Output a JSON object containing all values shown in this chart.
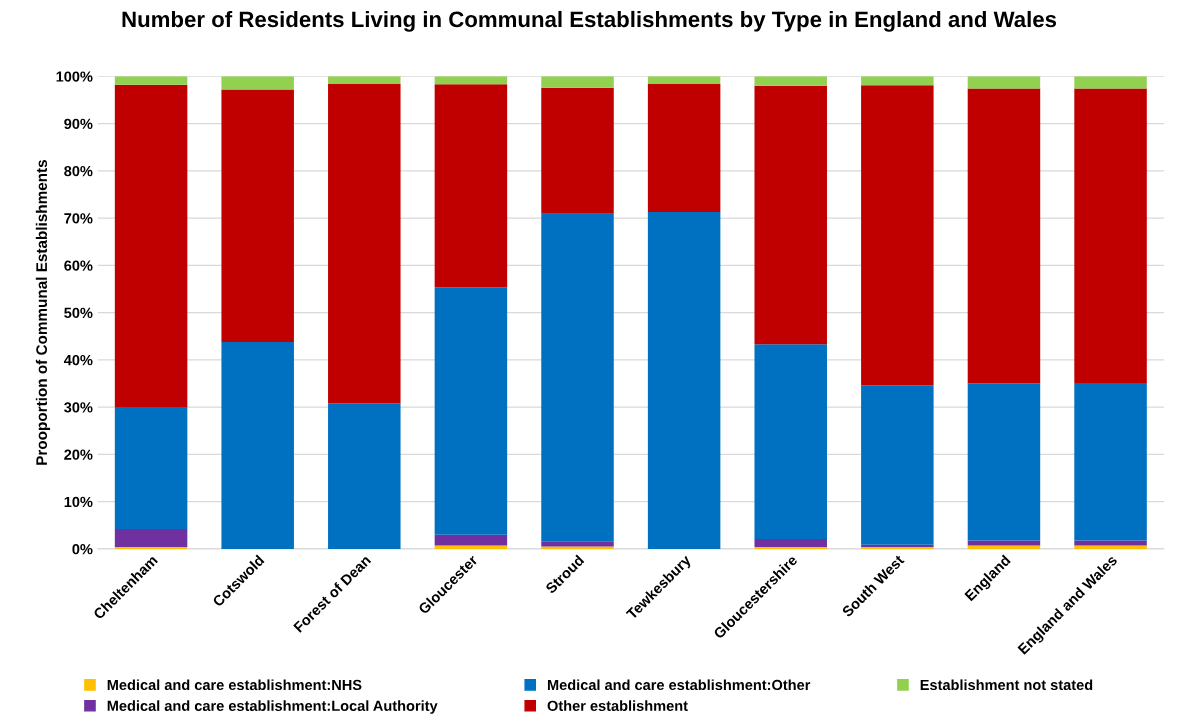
{
  "chart_data": {
    "type": "bar",
    "stacked": true,
    "title": "Number of Residents Living in Communal Establishments by Type in England and Wales",
    "ylabel": "Prooportion of Communal Establishments",
    "categories": [
      "Cheltenham",
      "Cotswold",
      "Forest of Dean",
      "Gloucester",
      "Stroud",
      "Tewkesbury",
      "Gloucestershire",
      "South West",
      "England",
      "England and Wales"
    ],
    "series": [
      {
        "name": "Medical and care establishment:NHS",
        "color": "#ffc000",
        "values": [
          0.4,
          0,
          0,
          0.7,
          0.5,
          0,
          0.4,
          0.4,
          0.7,
          0.7
        ]
      },
      {
        "name": "Medical and care establishment:Local Authority",
        "color": "#7030a0",
        "values": [
          3.8,
          0,
          0,
          2.3,
          1.1,
          0,
          1.7,
          0.5,
          1.1,
          1.1
        ]
      },
      {
        "name": "Medical and care establishment:Other",
        "color": "#0070c0",
        "values": [
          25.8,
          43.8,
          30.8,
          52.3,
          69.3,
          71.3,
          41.2,
          33.7,
          33.2,
          33.3
        ]
      },
      {
        "name": "Other establishment",
        "color": "#c00000",
        "values": [
          68.2,
          53.4,
          67.6,
          43.0,
          26.7,
          27.1,
          54.7,
          63.5,
          62.4,
          62.3
        ]
      },
      {
        "name": "Establishment not stated",
        "color": "#92d050",
        "values": [
          1.8,
          2.8,
          1.6,
          1.7,
          2.4,
          1.6,
          2.0,
          1.9,
          2.6,
          2.6
        ]
      }
    ],
    "ylim": [
      0,
      100
    ],
    "yticks": [
      {
        "value": 0,
        "label": "0%"
      },
      {
        "value": 10,
        "label": "10%"
      },
      {
        "value": 20,
        "label": "20%"
      },
      {
        "value": 30,
        "label": "30%"
      },
      {
        "value": 40,
        "label": "40%"
      },
      {
        "value": 50,
        "label": "50%"
      },
      {
        "value": 60,
        "label": "60%"
      },
      {
        "value": 70,
        "label": "70%"
      },
      {
        "value": 80,
        "label": "80%"
      },
      {
        "value": 90,
        "label": "90%"
      },
      {
        "value": 100,
        "label": "100%"
      }
    ],
    "grid": "y",
    "legend": "bottom"
  }
}
